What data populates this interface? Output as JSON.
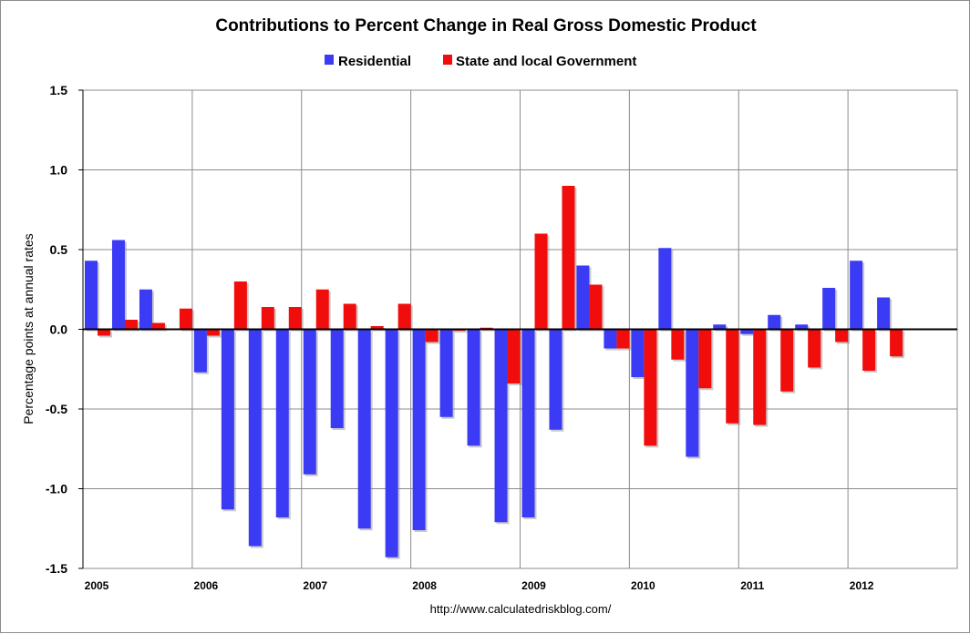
{
  "chart_data": {
    "type": "bar",
    "title": "Contributions to Percent Change in Real Gross Domestic Product",
    "ylabel": "Percentage points at annual rates",
    "source": "http://www.calculatedriskblog.com/",
    "ylim": [
      -1.5,
      1.5
    ],
    "yticks": [
      "1.5",
      "1.0",
      "0.5",
      "0.0",
      "-0.5",
      "-1.0",
      "-1.5"
    ],
    "ytick_values": [
      1.5,
      1.0,
      0.5,
      0.0,
      -0.5,
      -1.0,
      -1.5
    ],
    "grid": "vertical and horizontal",
    "legend_position": "top",
    "x_labels": [
      "2005",
      "2006",
      "2007",
      "2008",
      "2009",
      "2010",
      "2011",
      "2012"
    ],
    "quarters": [
      "2005 Q1",
      "2005 Q2",
      "2005 Q3",
      "2005 Q4",
      "2006 Q1",
      "2006 Q2",
      "2006 Q3",
      "2006 Q4",
      "2007 Q1",
      "2007 Q2",
      "2007 Q3",
      "2007 Q4",
      "2008 Q1",
      "2008 Q2",
      "2008 Q3",
      "2008 Q4",
      "2009 Q1",
      "2009 Q2",
      "2009 Q3",
      "2009 Q4",
      "2010 Q1",
      "2010 Q2",
      "2010 Q3",
      "2010 Q4",
      "2011 Q1",
      "2011 Q2",
      "2011 Q3",
      "2011 Q4",
      "2012 Q1",
      "2012 Q2"
    ],
    "series": [
      {
        "name": "Residential",
        "color": "#3b3bf5",
        "values": [
          0.43,
          0.56,
          0.25,
          0.0,
          -0.27,
          -1.13,
          -1.36,
          -1.18,
          -0.91,
          -0.62,
          -1.25,
          -1.43,
          -1.26,
          -0.55,
          -0.73,
          -1.21,
          -1.18,
          -0.63,
          0.4,
          -0.12,
          -0.3,
          0.51,
          -0.8,
          0.03,
          -0.03,
          0.09,
          0.03,
          0.26,
          0.43,
          0.2
        ]
      },
      {
        "name": "State and local Government",
        "color": "#f20d0d",
        "values": [
          -0.04,
          0.06,
          0.04,
          0.13,
          -0.04,
          0.3,
          0.14,
          0.14,
          0.25,
          0.16,
          0.02,
          0.16,
          -0.08,
          -0.01,
          0.01,
          -0.34,
          0.6,
          0.9,
          0.28,
          -0.12,
          -0.73,
          -0.19,
          -0.37,
          -0.59,
          -0.6,
          -0.39,
          -0.24,
          -0.08,
          -0.26,
          -0.17
        ]
      }
    ]
  }
}
